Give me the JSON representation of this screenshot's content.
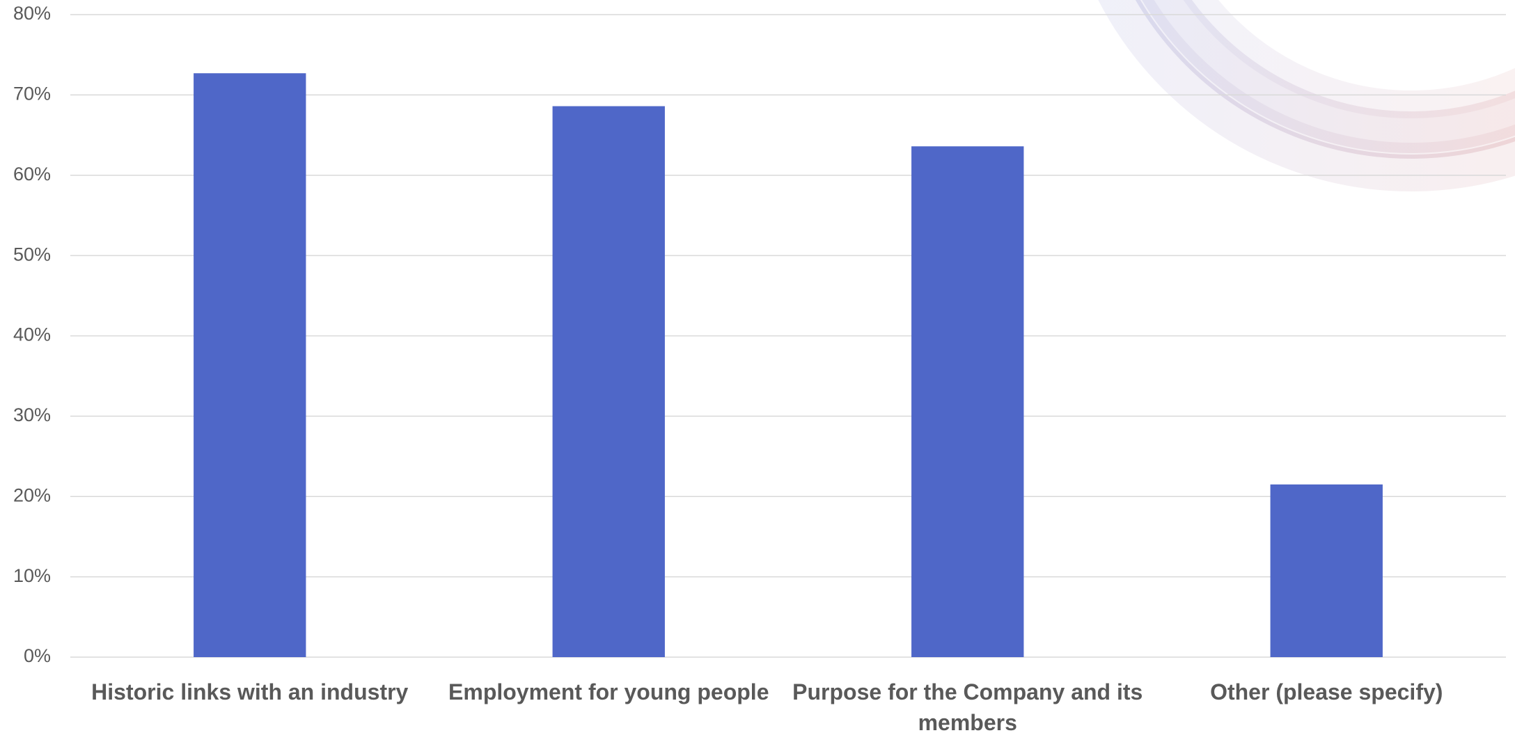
{
  "chart_data": {
    "type": "bar",
    "categories": [
      "Historic links with an industry",
      "Employment for young people",
      "Purpose for the Company and its members",
      "Other (please specify)"
    ],
    "values": [
      72.7,
      68.6,
      63.6,
      21.5
    ],
    "color": "#4f67c8",
    "ylim": [
      0,
      80
    ],
    "yticks": [
      {
        "value": 0,
        "label": "0%"
      },
      {
        "value": 10,
        "label": "10%"
      },
      {
        "value": 20,
        "label": "20%"
      },
      {
        "value": 30,
        "label": "30%"
      },
      {
        "value": 40,
        "label": "40%"
      },
      {
        "value": 50,
        "label": "50%"
      },
      {
        "value": 60,
        "label": "60%"
      },
      {
        "value": 70,
        "label": "70%"
      },
      {
        "value": 80,
        "label": "80%"
      }
    ],
    "grid": true
  }
}
